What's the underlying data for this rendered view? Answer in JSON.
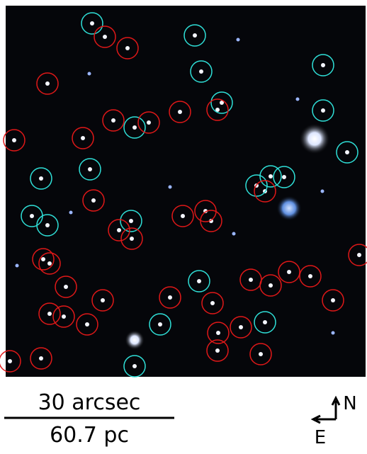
{
  "scale_bar": {
    "top_label": "30 arcsec",
    "bottom_label": "60.7 pc"
  },
  "compass": {
    "north": "N",
    "east": "E"
  }
}
